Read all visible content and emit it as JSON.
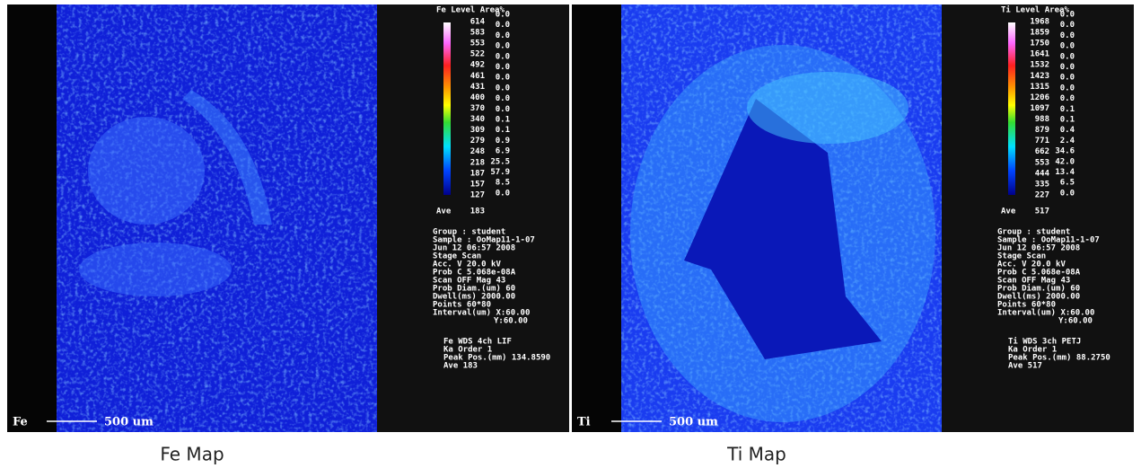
{
  "panels": [
    {
      "element_label": "Fe",
      "scale_label": "500 um",
      "legend_title": "Fe Level Area%",
      "levels": [
        614,
        583,
        553,
        522,
        492,
        461,
        431,
        400,
        370,
        340,
        309,
        279,
        248,
        218,
        187,
        157,
        127
      ],
      "area_percent": [
        "0.0",
        "0.0",
        "0.0",
        "0.0",
        "0.0",
        "0.0",
        "0.0",
        "0.0",
        "0.0",
        "0.0",
        "0.1",
        "0.1",
        "0.9",
        "6.9",
        "25.5",
        "57.9",
        "8.5",
        "0.0"
      ],
      "ave_label": "Ave",
      "ave_value": 183,
      "info": [
        "Group  : student",
        "Sample : OoMap11-1-07",
        "Jun 12 06:57 2008",
        "Stage Scan",
        "Acc. V     20.0 kV",
        "Prob C  5.068e-08A",
        "Scan OFF   Mag 43",
        "Prob Diam.(um) 60",
        "Dwell(ms) 2000.00",
        "Points   60*80",
        "Interval(um) X:60.00",
        "Y:60.00"
      ],
      "wds": [
        "Fe WDS   4ch  LIF",
        "Ka        Order 1",
        "Peak Pos.(mm) 134.8590",
        "Ave       183"
      ],
      "caption": "Fe Map"
    },
    {
      "element_label": "Ti",
      "scale_label": "500 um",
      "legend_title": "Ti Level Area%",
      "levels": [
        1968,
        1859,
        1750,
        1641,
        1532,
        1423,
        1315,
        1206,
        1097,
        988,
        879,
        771,
        662,
        553,
        444,
        335,
        227
      ],
      "area_percent": [
        "0.0",
        "0.0",
        "0.0",
        "0.0",
        "0.0",
        "0.0",
        "0.0",
        "0.0",
        "0.0",
        "0.1",
        "0.1",
        "0.4",
        "2.4",
        "34.6",
        "42.0",
        "13.4",
        "6.5",
        "0.0"
      ],
      "ave_label": "Ave",
      "ave_value": 517,
      "info": [
        "Group  : student",
        "Sample : OoMap11-1-07",
        "Jun 12 06:57 2008",
        "Stage Scan",
        "Acc. V     20.0 kV",
        "Prob C  5.068e-08A",
        "Scan OFF   Mag 43",
        "Prob Diam.(um) 60",
        "Dwell(ms) 2000.00",
        "Points   60*80",
        "Interval(um) X:60.00",
        "Y:60.00"
      ],
      "wds": [
        "Ti WDS   3ch  PETJ",
        "Ka        Order 1",
        "Peak Pos.(mm) 88.2750",
        "Ave       517"
      ],
      "caption": "Ti Map"
    }
  ]
}
